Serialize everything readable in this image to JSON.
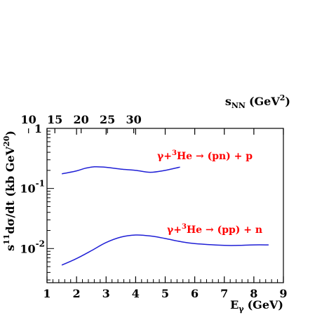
{
  "chart_data": {
    "type": "line",
    "xlabel": "E",
    "xlabel_sub": "γ",
    "xlabel_unit": "(GeV)",
    "ylabel_s": "s",
    "ylabel_exp": "11",
    "ylabel_mid": "dσ/dt (kb GeV",
    "ylabel_exp2": "20",
    "ylabel_end": ")",
    "top_axis_label": "s",
    "top_axis_sub": "NN",
    "top_axis_unit_open": "(GeV",
    "top_axis_unit_exp": "2",
    "top_axis_unit_close": ")",
    "xlim": [
      1,
      9
    ],
    "ylog": true,
    "ylim": [
      0.0027,
      1
    ],
    "x_ticks": [
      "1",
      "2",
      "3",
      "4",
      "5",
      "6",
      "7",
      "8",
      "9"
    ],
    "y_ticks": [
      {
        "value": 1,
        "base": "1",
        "exp": ""
      },
      {
        "value": 0.1,
        "base": "10",
        "exp": "-1"
      },
      {
        "value": 0.01,
        "base": "10",
        "exp": "-2"
      }
    ],
    "top_ticks": [
      "10",
      "15",
      "20",
      "25",
      "30"
    ],
    "grid": false,
    "line_color": "#1f1fd6",
    "annotation_color": "#ff0000",
    "series": [
      {
        "label_parts": [
          "γ+",
          "3",
          "He → (pn) + p"
        ],
        "x": [
          1.5,
          2.0,
          2.3,
          2.6,
          3.0,
          3.5,
          4.0,
          4.5,
          5.0,
          5.5
        ],
        "y": [
          0.175,
          0.196,
          0.217,
          0.229,
          0.225,
          0.21,
          0.2,
          0.186,
          0.2,
          0.227
        ]
      },
      {
        "label_parts": [
          "γ+",
          "3",
          "He → (pp) + n"
        ],
        "x": [
          1.5,
          2.0,
          2.5,
          3.0,
          3.5,
          4.0,
          4.5,
          5.0,
          5.5,
          6.0,
          7.0,
          7.5,
          8.0,
          8.5
        ],
        "y": [
          0.0053,
          0.0068,
          0.0092,
          0.0126,
          0.0155,
          0.0168,
          0.0162,
          0.0147,
          0.0131,
          0.0121,
          0.0113,
          0.0113,
          0.0115,
          0.0115
        ]
      }
    ]
  }
}
